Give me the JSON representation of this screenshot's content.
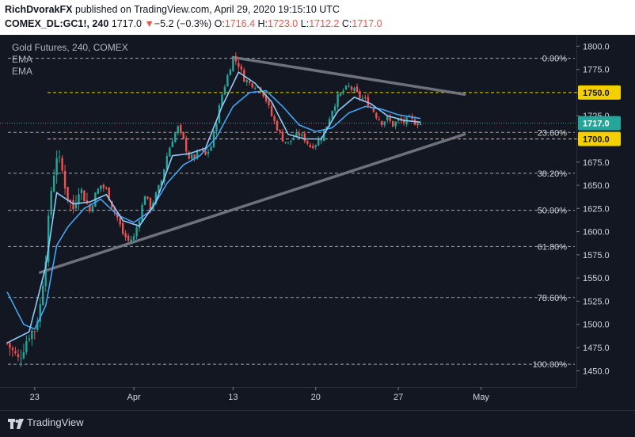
{
  "header": {
    "author": "RichDvorakFX",
    "published_text": "published on TradingView.com, April 29, 2020 19:15:10 UTC",
    "symbol": "COMEX_DL:GC1!, 240",
    "last": "1717.0",
    "change_arrow": "▼",
    "change": "−5.2 (−0.3%)",
    "o_label": "O:",
    "o_value": "1716.4",
    "h_label": "H:",
    "h_value": "1723.0",
    "l_label": "L:",
    "l_value": "1712.2",
    "c_label": "C:",
    "c_value": "1717.0"
  },
  "legend": {
    "title": "Gold Futures, 240, COMEX",
    "ema1": "EMA",
    "ema2": "EMA"
  },
  "footer": {
    "brand": "TradingView"
  },
  "chart_data": {
    "type": "candlestick",
    "instrument": "Gold Futures, 240, COMEX",
    "ylim": [
      1440,
      1808
    ],
    "y_ticks": [
      1800.0,
      1775.0,
      1750.0,
      1725.0,
      1700.0,
      1675.0,
      1650.0,
      1625.0,
      1600.0,
      1575.0,
      1550.0,
      1525.0,
      1500.0,
      1475.0,
      1450.0
    ],
    "x_ticks": [
      {
        "label": "23",
        "bar": 10
      },
      {
        "label": "Apr",
        "bar": 46
      },
      {
        "label": "13",
        "bar": 82
      },
      {
        "label": "20",
        "bar": 112
      },
      {
        "label": "27",
        "bar": 142
      },
      {
        "label": "May",
        "bar": 172
      }
    ],
    "bar_count": 180,
    "colors": {
      "up": "#26a69a",
      "down": "#ef5350",
      "ema_fast": "#90caf9",
      "ema_slow": "#42a5f5",
      "trendline": "#787b86",
      "fib": "#d1d4dc",
      "level": "#f5d000",
      "price_line": "#26a69a"
    },
    "candle_anchors": [
      [
        0,
        1480
      ],
      [
        4,
        1462
      ],
      [
        8,
        1490
      ],
      [
        10,
        1495
      ],
      [
        12,
        1520
      ],
      [
        14,
        1575
      ],
      [
        16,
        1645
      ],
      [
        18,
        1683
      ],
      [
        20,
        1665
      ],
      [
        22,
        1638
      ],
      [
        24,
        1625
      ],
      [
        26,
        1648
      ],
      [
        28,
        1638
      ],
      [
        30,
        1622
      ],
      [
        32,
        1640
      ],
      [
        34,
        1650
      ],
      [
        36,
        1645
      ],
      [
        38,
        1628
      ],
      [
        40,
        1615
      ],
      [
        42,
        1598
      ],
      [
        44,
        1590
      ],
      [
        46,
        1594
      ],
      [
        48,
        1615
      ],
      [
        50,
        1640
      ],
      [
        52,
        1625
      ],
      [
        54,
        1640
      ],
      [
        56,
        1655
      ],
      [
        58,
        1682
      ],
      [
        60,
        1700
      ],
      [
        62,
        1712
      ],
      [
        64,
        1698
      ],
      [
        66,
        1680
      ],
      [
        68,
        1680
      ],
      [
        70,
        1688
      ],
      [
        72,
        1682
      ],
      [
        74,
        1692
      ],
      [
        76,
        1720
      ],
      [
        78,
        1748
      ],
      [
        80,
        1768
      ],
      [
        82,
        1788
      ],
      [
        84,
        1780
      ],
      [
        86,
        1765
      ],
      [
        88,
        1760
      ],
      [
        90,
        1758
      ],
      [
        92,
        1755
      ],
      [
        94,
        1742
      ],
      [
        96,
        1725
      ],
      [
        98,
        1712
      ],
      [
        100,
        1700
      ],
      [
        102,
        1695
      ],
      [
        104,
        1702
      ],
      [
        106,
        1705
      ],
      [
        108,
        1700
      ],
      [
        110,
        1692
      ],
      [
        112,
        1695
      ],
      [
        114,
        1702
      ],
      [
        116,
        1715
      ],
      [
        118,
        1732
      ],
      [
        120,
        1745
      ],
      [
        122,
        1752
      ],
      [
        124,
        1756
      ],
      [
        126,
        1752
      ],
      [
        128,
        1745
      ],
      [
        130,
        1742
      ],
      [
        132,
        1735
      ],
      [
        134,
        1725
      ],
      [
        136,
        1718
      ],
      [
        138,
        1722
      ],
      [
        140,
        1715
      ],
      [
        142,
        1720
      ],
      [
        144,
        1718
      ],
      [
        146,
        1722
      ],
      [
        148,
        1718
      ],
      [
        150,
        1717
      ]
    ],
    "ema_fast": [
      [
        0,
        1480
      ],
      [
        8,
        1492
      ],
      [
        14,
        1562
      ],
      [
        18,
        1642
      ],
      [
        24,
        1630
      ],
      [
        30,
        1632
      ],
      [
        36,
        1640
      ],
      [
        42,
        1612
      ],
      [
        48,
        1606
      ],
      [
        54,
        1632
      ],
      [
        60,
        1682
      ],
      [
        66,
        1684
      ],
      [
        72,
        1690
      ],
      [
        78,
        1735
      ],
      [
        84,
        1772
      ],
      [
        90,
        1760
      ],
      [
        96,
        1740
      ],
      [
        102,
        1705
      ],
      [
        108,
        1700
      ],
      [
        114,
        1700
      ],
      [
        120,
        1730
      ],
      [
        126,
        1745
      ],
      [
        132,
        1738
      ],
      [
        138,
        1725
      ],
      [
        144,
        1720
      ],
      [
        150,
        1718
      ]
    ],
    "ema_slow": [
      [
        0,
        1535
      ],
      [
        6,
        1500
      ],
      [
        10,
        1495
      ],
      [
        14,
        1520
      ],
      [
        18,
        1585
      ],
      [
        22,
        1605
      ],
      [
        28,
        1625
      ],
      [
        34,
        1635
      ],
      [
        40,
        1618
      ],
      [
        46,
        1610
      ],
      [
        52,
        1622
      ],
      [
        58,
        1652
      ],
      [
        64,
        1672
      ],
      [
        70,
        1682
      ],
      [
        76,
        1702
      ],
      [
        82,
        1735
      ],
      [
        88,
        1750
      ],
      [
        94,
        1752
      ],
      [
        100,
        1735
      ],
      [
        106,
        1715
      ],
      [
        112,
        1708
      ],
      [
        118,
        1712
      ],
      [
        124,
        1728
      ],
      [
        130,
        1735
      ],
      [
        136,
        1732
      ],
      [
        142,
        1726
      ],
      [
        150,
        1722
      ]
    ],
    "trendlines": [
      {
        "name": "resistance",
        "from": [
          82,
          1788
        ],
        "to": [
          166,
          1748
        ]
      },
      {
        "name": "support",
        "from": [
          12,
          1556
        ],
        "to": [
          166,
          1705
        ]
      }
    ],
    "fib_levels": [
      {
        "label": "0.00%",
        "value": 1787
      },
      {
        "label": "23.60%",
        "value": 1707
      },
      {
        "label": "38.20%",
        "value": 1663
      },
      {
        "label": "50.00%",
        "value": 1623
      },
      {
        "label": "61.80%",
        "value": 1584
      },
      {
        "label": "78.60%",
        "value": 1529
      },
      {
        "label": "100.00%",
        "value": 1457
      }
    ],
    "price_levels": [
      {
        "label": "1750.0",
        "value": 1750
      },
      {
        "label": "1700.0",
        "value": 1700
      }
    ],
    "current_price": {
      "label": "1717.0",
      "value": 1717
    }
  }
}
